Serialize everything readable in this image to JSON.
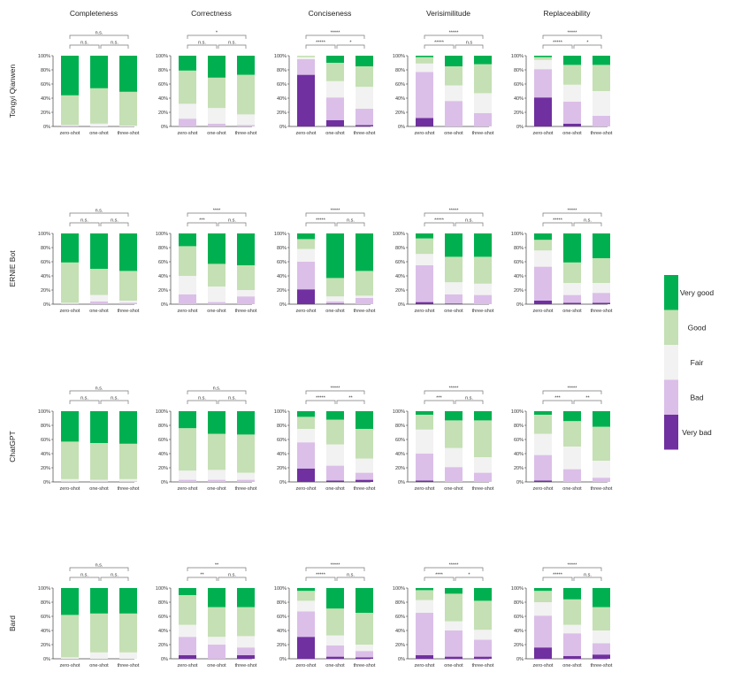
{
  "chart_data": {
    "type": "bar",
    "stacked": true,
    "layout": "grid",
    "metrics": [
      "Completeness",
      "Correctness",
      "Conciseness",
      "Verisimilitude",
      "Replaceability"
    ],
    "models": [
      "Tongyi Qianwen",
      "ERNIE Bot",
      "ChatGPT",
      "Bard"
    ],
    "categories": [
      "zero-shot",
      "one-shot",
      "three-shot"
    ],
    "ylim": [
      0,
      100
    ],
    "y_ticks": [
      "0%",
      "20%",
      "40%",
      "60%",
      "80%",
      "100%"
    ],
    "legend": {
      "placement": "right",
      "entries": [
        "Very good",
        "Good",
        "Fair",
        "Bad",
        "Very bad"
      ]
    },
    "colors": {
      "very_bad": "#7030a0",
      "bad": "#dbbfe8",
      "fair": "#f2f2f2",
      "good": "#c5e0b4",
      "very_good": "#00b050"
    },
    "series_order": [
      "very_bad",
      "bad",
      "fair",
      "good",
      "very_good"
    ],
    "panels": [
      {
        "model": "Tongyi Qianwen",
        "metric": "Completeness",
        "significance": {
          "zero_one": "n.s.",
          "one_three": "n.s.",
          "zero_three": "n.s."
        },
        "bars": [
          [
            0,
            1,
            1,
            42,
            56
          ],
          [
            0,
            0,
            4,
            50,
            46
          ],
          [
            0,
            0,
            1,
            48,
            51
          ]
        ]
      },
      {
        "model": "Tongyi Qianwen",
        "metric": "Correctness",
        "significance": {
          "zero_one": "n.s.",
          "one_three": "n.s.",
          "zero_three": "*"
        },
        "bars": [
          [
            0,
            11,
            21,
            47,
            21
          ],
          [
            0,
            4,
            22,
            43,
            31
          ],
          [
            0,
            2,
            15,
            56,
            27
          ]
        ]
      },
      {
        "model": "Tongyi Qianwen",
        "metric": "Conciseness",
        "significance": {
          "zero_one": "*****",
          "one_three": "*",
          "zero_three": "*****"
        },
        "bars": [
          [
            73,
            22,
            3,
            2,
            0
          ],
          [
            9,
            32,
            23,
            26,
            10
          ],
          [
            2,
            23,
            31,
            29,
            15
          ]
        ]
      },
      {
        "model": "Tongyi Qianwen",
        "metric": "Verisimilitude",
        "significance": {
          "zero_one": "*****",
          "one_three": "n.s",
          "zero_three": "*****"
        },
        "bars": [
          [
            12,
            65,
            12,
            9,
            2
          ],
          [
            0,
            36,
            22,
            27,
            15
          ],
          [
            0,
            19,
            28,
            41,
            12
          ]
        ]
      },
      {
        "model": "Tongyi Qianwen",
        "metric": "Replaceability",
        "significance": {
          "zero_one": "*****",
          "one_three": "*",
          "zero_three": "*****"
        },
        "bars": [
          [
            41,
            40,
            13,
            4,
            2
          ],
          [
            4,
            31,
            24,
            28,
            13
          ],
          [
            0,
            15,
            35,
            37,
            13
          ]
        ]
      },
      {
        "model": "ERNIE Bot",
        "metric": "Completeness",
        "significance": {
          "zero_one": "n.s.",
          "one_three": "n.s.",
          "zero_three": "n.s."
        },
        "bars": [
          [
            0,
            1,
            1,
            57,
            41
          ],
          [
            0,
            4,
            9,
            37,
            50
          ],
          [
            0,
            2,
            3,
            42,
            53
          ]
        ]
      },
      {
        "model": "ERNIE Bot",
        "metric": "Correctness",
        "significance": {
          "zero_one": "***",
          "one_three": "n.s.",
          "zero_three": "****"
        },
        "bars": [
          [
            0,
            14,
            26,
            42,
            18
          ],
          [
            0,
            3,
            22,
            32,
            43
          ],
          [
            0,
            11,
            9,
            35,
            45
          ]
        ]
      },
      {
        "model": "ERNIE Bot",
        "metric": "Conciseness",
        "significance": {
          "zero_one": "*****",
          "one_three": "n.s.",
          "zero_three": "*****"
        },
        "bars": [
          [
            21,
            39,
            18,
            14,
            8
          ],
          [
            1,
            3,
            7,
            26,
            63
          ],
          [
            0,
            9,
            3,
            35,
            53
          ]
        ]
      },
      {
        "model": "ERNIE Bot",
        "metric": "Verisimilitude",
        "significance": {
          "zero_one": "*****",
          "one_three": "n.s.",
          "zero_three": "*****"
        },
        "bars": [
          [
            3,
            52,
            16,
            22,
            7
          ],
          [
            1,
            13,
            17,
            36,
            33
          ],
          [
            0,
            13,
            16,
            38,
            33
          ]
        ]
      },
      {
        "model": "ERNIE Bot",
        "metric": "Replaceability",
        "significance": {
          "zero_one": "*****",
          "one_three": "n.s.",
          "zero_three": "*****"
        },
        "bars": [
          [
            5,
            48,
            23,
            15,
            9
          ],
          [
            2,
            11,
            17,
            29,
            41
          ],
          [
            2,
            14,
            14,
            35,
            35
          ]
        ]
      },
      {
        "model": "ChatGPT",
        "metric": "Completeness",
        "significance": {
          "zero_one": "n.s.",
          "one_three": "n.s.",
          "zero_three": "n.s."
        },
        "bars": [
          [
            0,
            1,
            3,
            53,
            43
          ],
          [
            0,
            1,
            2,
            52,
            45
          ],
          [
            0,
            1,
            3,
            50,
            46
          ]
        ]
      },
      {
        "model": "ChatGPT",
        "metric": "Correctness",
        "significance": {
          "zero_one": "n.s.",
          "one_three": "n.s.",
          "zero_three": "n.s."
        },
        "bars": [
          [
            0,
            3,
            13,
            60,
            24
          ],
          [
            0,
            3,
            14,
            51,
            32
          ],
          [
            0,
            3,
            10,
            54,
            33
          ]
        ]
      },
      {
        "model": "ChatGPT",
        "metric": "Conciseness",
        "significance": {
          "zero_one": "*****",
          "one_three": "**",
          "zero_three": "*****"
        },
        "bars": [
          [
            19,
            37,
            19,
            17,
            8
          ],
          [
            2,
            21,
            30,
            35,
            12
          ],
          [
            3,
            10,
            20,
            42,
            25
          ]
        ]
      },
      {
        "model": "ChatGPT",
        "metric": "Verisimilitude",
        "significance": {
          "zero_one": "***",
          "one_three": "n.s.",
          "zero_three": "*****"
        },
        "bars": [
          [
            2,
            38,
            34,
            21,
            5
          ],
          [
            0,
            21,
            27,
            39,
            13
          ],
          [
            0,
            13,
            22,
            52,
            13
          ]
        ]
      },
      {
        "model": "ChatGPT",
        "metric": "Replaceability",
        "significance": {
          "zero_one": "***",
          "one_three": "**",
          "zero_three": "*****"
        },
        "bars": [
          [
            2,
            36,
            30,
            27,
            5
          ],
          [
            0,
            18,
            32,
            36,
            14
          ],
          [
            0,
            6,
            24,
            48,
            22
          ]
        ]
      },
      {
        "model": "Bard",
        "metric": "Completeness",
        "significance": {
          "zero_one": "n.s.",
          "one_three": "n.s.",
          "zero_three": "n.s."
        },
        "bars": [
          [
            0,
            0,
            2,
            60,
            38
          ],
          [
            0,
            0,
            9,
            55,
            36
          ],
          [
            0,
            0,
            9,
            55,
            36
          ]
        ]
      },
      {
        "model": "Bard",
        "metric": "Correctness",
        "significance": {
          "zero_one": "**",
          "one_three": "n.s.",
          "zero_three": "**"
        },
        "bars": [
          [
            5,
            26,
            17,
            42,
            10
          ],
          [
            0,
            20,
            11,
            42,
            27
          ],
          [
            5,
            11,
            16,
            41,
            27
          ]
        ]
      },
      {
        "model": "Bard",
        "metric": "Conciseness",
        "significance": {
          "zero_one": "*****",
          "one_three": "n.s.",
          "zero_three": "*****"
        },
        "bars": [
          [
            31,
            36,
            15,
            14,
            4
          ],
          [
            3,
            16,
            14,
            38,
            29
          ],
          [
            2,
            9,
            9,
            45,
            35
          ]
        ]
      },
      {
        "model": "Bard",
        "metric": "Verisimilitude",
        "significance": {
          "zero_one": "****",
          "one_three": "*",
          "zero_three": "*****"
        },
        "bars": [
          [
            5,
            60,
            18,
            14,
            3
          ],
          [
            3,
            37,
            13,
            39,
            8
          ],
          [
            3,
            24,
            14,
            41,
            18
          ]
        ]
      },
      {
        "model": "Bard",
        "metric": "Replaceability",
        "significance": {
          "zero_one": "*****",
          "one_three": "n.s.",
          "zero_three": "*****"
        },
        "bars": [
          [
            16,
            45,
            19,
            16,
            4
          ],
          [
            4,
            32,
            12,
            36,
            16
          ],
          [
            6,
            16,
            18,
            33,
            27
          ]
        ]
      }
    ]
  }
}
